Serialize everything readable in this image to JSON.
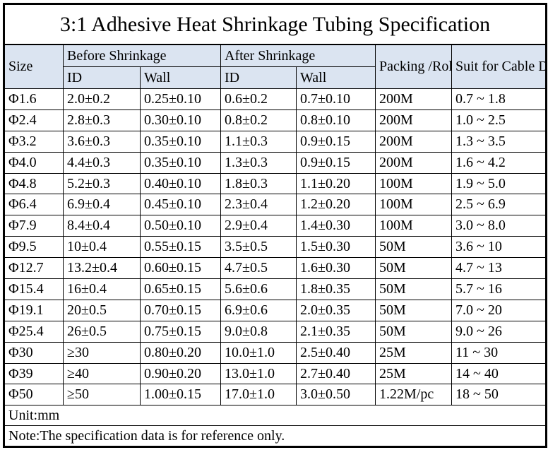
{
  "title": "3:1 Adhesive Heat Shrinkage Tubing Specification",
  "colors": {
    "header_bg": "#dbe4f1",
    "border": "#000000",
    "background": "#ffffff"
  },
  "table": {
    "header": {
      "size": "Size",
      "before": "Before Shrinkage",
      "after": "After Shrinkage",
      "id": "ID",
      "wall": "Wall",
      "packing": "Packing\n/Roll",
      "suit": "Suit for Cable\nDiameter"
    },
    "rows": [
      [
        "Φ1.6",
        "2.0±0.2",
        "0.25±0.10",
        "0.6±0.2",
        "0.7±0.10",
        "200M",
        "0.7 ~ 1.8"
      ],
      [
        "Φ2.4",
        "2.8±0.3",
        "0.30±0.10",
        "0.8±0.2",
        "0.8±0.10",
        "200M",
        "1.0 ~ 2.5"
      ],
      [
        "Φ3.2",
        "3.6±0.3",
        "0.35±0.10",
        "1.1±0.3",
        "0.9±0.15",
        "200M",
        "1.3 ~ 3.5"
      ],
      [
        "Φ4.0",
        "4.4±0.3",
        "0.35±0.10",
        "1.3±0.3",
        "0.9±0.15",
        "200M",
        "1.6 ~ 4.2"
      ],
      [
        "Φ4.8",
        "5.2±0.3",
        "0.40±0.10",
        "1.8±0.3",
        "1.1±0.20",
        "100M",
        "1.9 ~ 5.0"
      ],
      [
        "Φ6.4",
        "6.9±0.4",
        "0.45±0.10",
        "2.3±0.4",
        "1.2±0.20",
        "100M",
        "2.5 ~ 6.9"
      ],
      [
        "Φ7.9",
        "8.4±0.4",
        "0.50±0.10",
        "2.9±0.4",
        "1.4±0.30",
        "100M",
        "3.0 ~ 8.0"
      ],
      [
        "Φ9.5",
        "10±0.4",
        "0.55±0.15",
        "3.5±0.5",
        "1.5±0.30",
        "50M",
        "3.6 ~ 10"
      ],
      [
        "Φ12.7",
        "13.2±0.4",
        "0.60±0.15",
        "4.7±0.5",
        "1.6±0.30",
        "50M",
        "4.7 ~ 13"
      ],
      [
        "Φ15.4",
        "16±0.4",
        "0.65±0.15",
        "5.6±0.6",
        "1.8±0.35",
        "50M",
        "5.7 ~ 16"
      ],
      [
        "Φ19.1",
        "20±0.5",
        "0.70±0.15",
        "6.9±0.6",
        "2.0±0.35",
        "50M",
        "7.0 ~ 20"
      ],
      [
        "Φ25.4",
        "26±0.5",
        "0.75±0.15",
        "9.0±0.8",
        "2.1±0.35",
        "50M",
        "9.0 ~ 26"
      ],
      [
        "Φ30",
        "≥30",
        "0.80±0.20",
        "10.0±1.0",
        "2.5±0.40",
        "25M",
        "11 ~ 30"
      ],
      [
        "Φ39",
        "≥40",
        "0.90±0.20",
        "13.0±1.0",
        "2.7±0.40",
        "25M",
        "14 ~ 40"
      ],
      [
        "Φ50",
        "≥50",
        "1.00±0.15",
        "17.0±1.0",
        "3.0±0.50",
        "1.22M/pc",
        "18 ~ 50"
      ]
    ],
    "unit": "Unit:mm",
    "note": "Note:The specification data is for reference only."
  }
}
